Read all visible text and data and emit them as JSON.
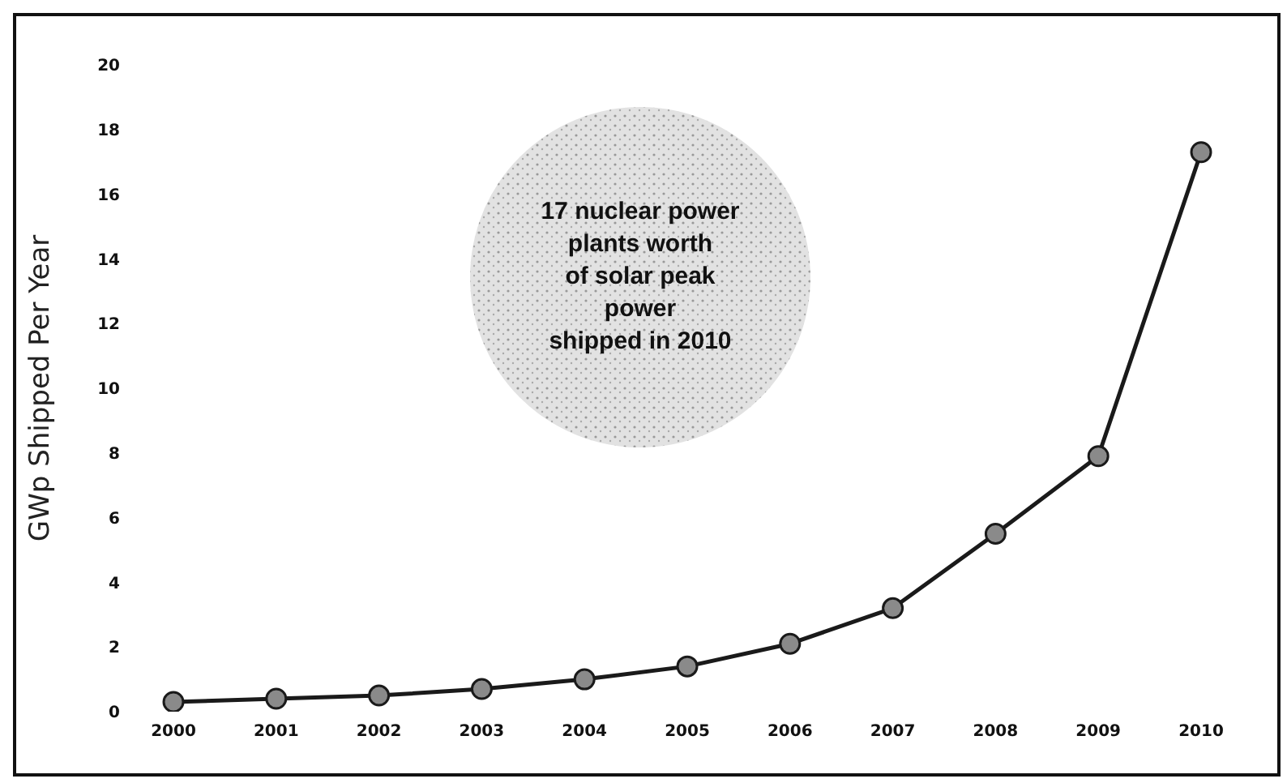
{
  "chart_data": {
    "type": "line",
    "ylabel": "GWp Shipped Per Year",
    "categories": [
      "2000",
      "2001",
      "2002",
      "2003",
      "2004",
      "2005",
      "2006",
      "2007",
      "2008",
      "2009",
      "2010"
    ],
    "series": [
      {
        "color": "#1a1a1a",
        "values": [
          0.3,
          0.4,
          0.5,
          0.7,
          1.0,
          1.4,
          2.1,
          3.2,
          5.5,
          7.9,
          17.3
        ]
      }
    ],
    "ylim": [
      0,
      20
    ],
    "yticks": [
      0,
      2,
      4,
      6,
      8,
      10,
      12,
      14,
      16,
      18,
      20
    ],
    "grid": false,
    "legend": false,
    "marker": "circle",
    "line_style": "solid",
    "annotations": [
      "17 nuclear power\nplants worth\nof solar peak\npower\nshipped in 2010"
    ]
  }
}
